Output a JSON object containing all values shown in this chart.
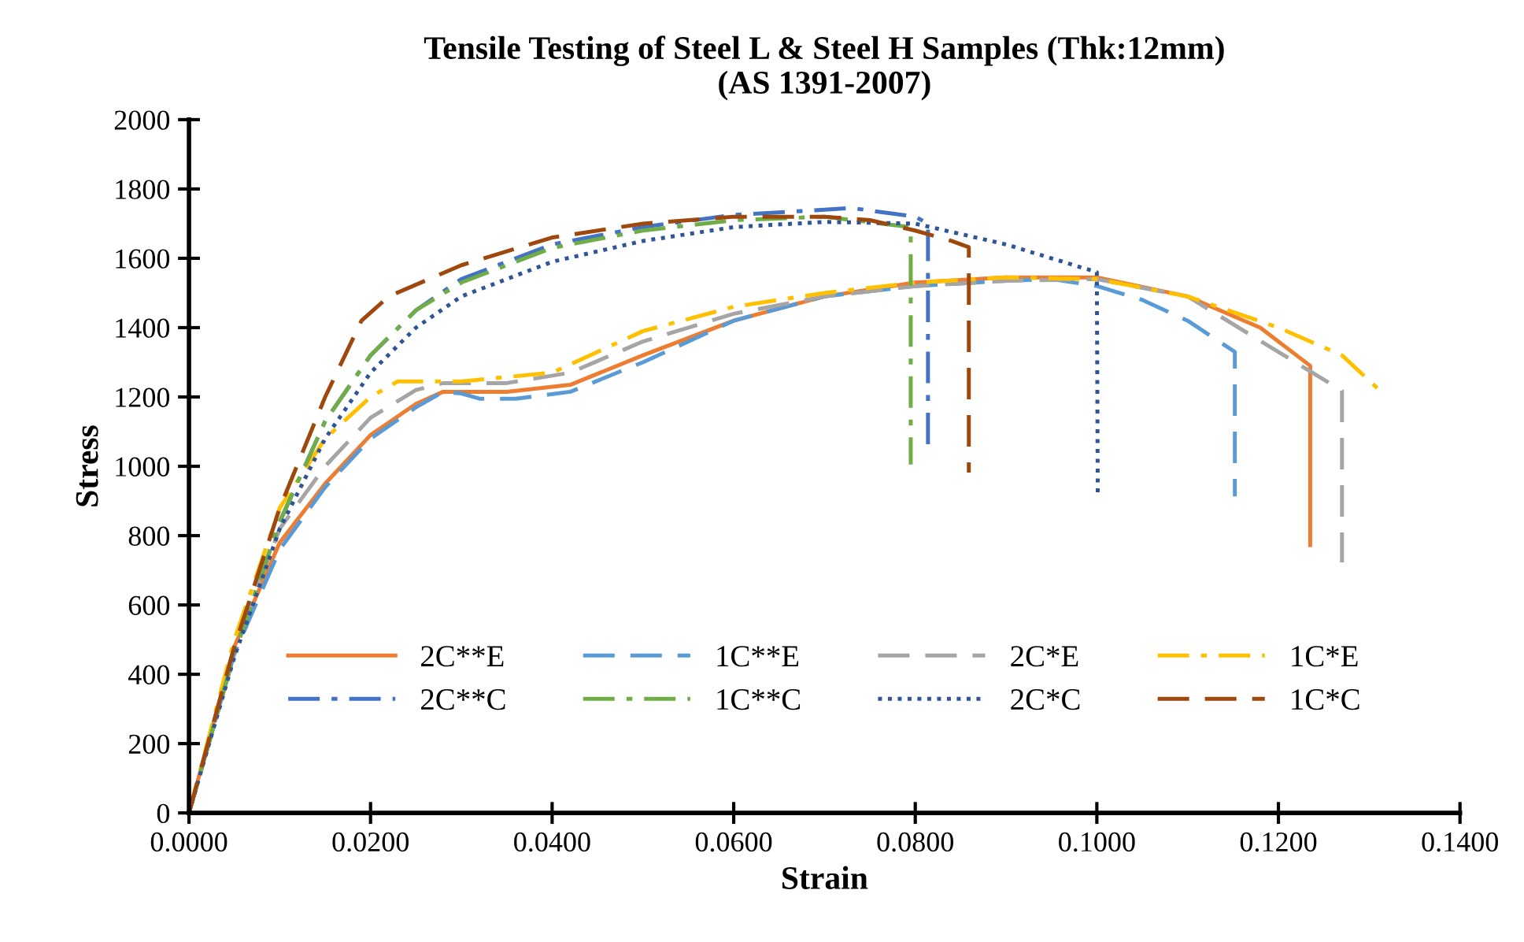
{
  "chart_data": {
    "type": "line",
    "title": "Tensile Testing of Steel L & Steel H Samples (Thk:12mm)\n(AS 1391-2007)",
    "xlabel": "Strain",
    "ylabel": "Stress",
    "xlim": [
      0,
      0.14
    ],
    "xticks": [
      {
        "value": 0,
        "label": "0.0000"
      },
      {
        "value": 0.02,
        "label": "0.0200"
      },
      {
        "value": 0.04,
        "label": "0.0400"
      },
      {
        "value": 0.06,
        "label": "0.0600"
      },
      {
        "value": 0.08,
        "label": "0.0800"
      },
      {
        "value": 0.1,
        "label": "0.1000"
      },
      {
        "value": 0.12,
        "label": "0.1200"
      },
      {
        "value": 0.14,
        "label": "0.1400"
      }
    ],
    "ylim": [
      0,
      2000
    ],
    "yticks": [
      0,
      200,
      400,
      600,
      800,
      1000,
      1200,
      1400,
      1600,
      1800,
      2000
    ],
    "grid": false,
    "legend": "bottom",
    "marker": "none",
    "series": [
      {
        "name": "2C**E",
        "color": "#ed7d31",
        "line_style": "solid",
        "x": [
          0,
          0.005,
          0.01,
          0.015,
          0.02,
          0.025,
          0.028,
          0.035,
          0.042,
          0.05,
          0.06,
          0.07,
          0.08,
          0.09,
          0.1,
          0.11,
          0.118,
          0.1235,
          0.1235
        ],
        "values": [
          0,
          480,
          780,
          950,
          1090,
          1180,
          1215,
          1215,
          1235,
          1320,
          1420,
          1490,
          1530,
          1545,
          1545,
          1490,
          1400,
          1290,
          773
        ]
      },
      {
        "name": "1C**E",
        "color": "#5b9bd5",
        "line_style": "dashed",
        "x": [
          0,
          0.005,
          0.01,
          0.015,
          0.02,
          0.025,
          0.028,
          0.03,
          0.032,
          0.036,
          0.042,
          0.05,
          0.06,
          0.07,
          0.08,
          0.09,
          0.095,
          0.1,
          0.105,
          0.11,
          0.1152,
          0.1152
        ],
        "values": [
          0,
          460,
          760,
          940,
          1080,
          1170,
          1215,
          1210,
          1195,
          1195,
          1215,
          1300,
          1420,
          1490,
          1520,
          1535,
          1540,
          1520,
          1480,
          1420,
          1330,
          913
        ]
      },
      {
        "name": "2C*E",
        "color": "#a5a5a5",
        "line_style": "dashed",
        "x": [
          0,
          0.005,
          0.01,
          0.015,
          0.02,
          0.025,
          0.028,
          0.035,
          0.042,
          0.05,
          0.06,
          0.07,
          0.08,
          0.09,
          0.1,
          0.11,
          0.12,
          0.127,
          0.127
        ],
        "values": [
          0,
          480,
          820,
          1000,
          1140,
          1220,
          1240,
          1240,
          1270,
          1360,
          1440,
          1490,
          1520,
          1535,
          1540,
          1490,
          1330,
          1218,
          723
        ]
      },
      {
        "name": "1C*E",
        "color": "#ffc000",
        "line_style": "dashdot",
        "x": [
          0,
          0.005,
          0.01,
          0.015,
          0.02,
          0.023,
          0.03,
          0.04,
          0.05,
          0.06,
          0.07,
          0.08,
          0.09,
          0.1,
          0.11,
          0.12,
          0.127,
          0.131
        ],
        "values": [
          0,
          500,
          880,
          1080,
          1200,
          1245,
          1245,
          1270,
          1390,
          1460,
          1500,
          1530,
          1545,
          1540,
          1490,
          1400,
          1320,
          1223
        ]
      },
      {
        "name": "2C**C",
        "color": "#4472c4",
        "line_style": "dashdot",
        "x": [
          0,
          0.005,
          0.01,
          0.015,
          0.02,
          0.025,
          0.03,
          0.04,
          0.05,
          0.06,
          0.07,
          0.073,
          0.08,
          0.0814,
          0.0814
        ],
        "values": [
          0,
          460,
          840,
          1130,
          1320,
          1450,
          1540,
          1640,
          1690,
          1725,
          1740,
          1745,
          1720,
          1700,
          1059
        ]
      },
      {
        "name": "1C**C",
        "color": "#70ad47",
        "line_style": "dashdot",
        "x": [
          0,
          0.005,
          0.01,
          0.015,
          0.02,
          0.025,
          0.03,
          0.04,
          0.05,
          0.06,
          0.07,
          0.0795,
          0.0795
        ],
        "values": [
          0,
          460,
          840,
          1130,
          1320,
          1450,
          1530,
          1630,
          1680,
          1710,
          1720,
          1690,
          1005
        ]
      },
      {
        "name": "2C*C",
        "color": "#2f5597",
        "line_style": "dotted",
        "x": [
          0,
          0.005,
          0.01,
          0.015,
          0.02,
          0.025,
          0.03,
          0.04,
          0.05,
          0.06,
          0.07,
          0.08,
          0.09,
          0.1,
          0.1001
        ],
        "values": [
          0,
          450,
          820,
          1080,
          1270,
          1400,
          1490,
          1590,
          1650,
          1690,
          1705,
          1700,
          1640,
          1560,
          923
        ]
      },
      {
        "name": "1C*C",
        "color": "#9e480e",
        "line_style": "dashed",
        "x": [
          0,
          0.005,
          0.01,
          0.015,
          0.019,
          0.022,
          0.03,
          0.04,
          0.05,
          0.06,
          0.07,
          0.075,
          0.08,
          0.084,
          0.0859,
          0.0859
        ],
        "values": [
          0,
          480,
          880,
          1200,
          1420,
          1490,
          1580,
          1660,
          1700,
          1720,
          1720,
          1710,
          1680,
          1650,
          1632,
          982
        ]
      }
    ]
  }
}
